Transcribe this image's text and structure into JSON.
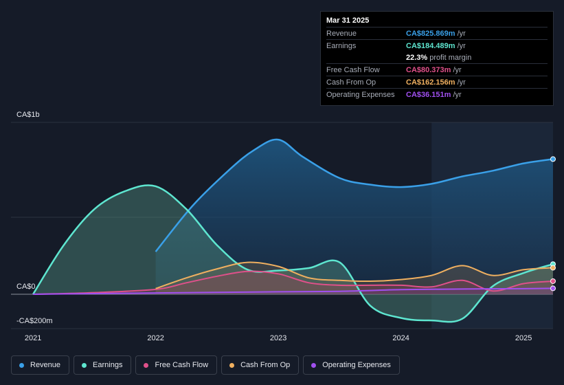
{
  "tooltip": {
    "date": "Mar 31 2025",
    "rows": [
      {
        "label": "Revenue",
        "value": "CA$825.869m",
        "unit": "/yr",
        "color": "#3aa0e8"
      },
      {
        "label": "Earnings",
        "value": "CA$184.489m",
        "unit": "/yr",
        "color": "#5ee6d0"
      },
      {
        "label": "",
        "value": "22.3%",
        "unit": "profit margin",
        "color": "#ffffff"
      },
      {
        "label": "Free Cash Flow",
        "value": "CA$80.373m",
        "unit": "/yr",
        "color": "#e0508a"
      },
      {
        "label": "Cash From Op",
        "value": "CA$162.156m",
        "unit": "/yr",
        "color": "#f0b060"
      },
      {
        "label": "Operating Expenses",
        "value": "CA$36.151m",
        "unit": "/yr",
        "color": "#a050f0"
      }
    ]
  },
  "chart_data": {
    "type": "area",
    "y_unit_label": "CA$",
    "ytick_labels": {
      "top": "CA$1b",
      "zero": "CA$0",
      "bottom": "-CA$200m"
    },
    "ylim": [
      -200,
      1000
    ],
    "xtick_labels": [
      "2021",
      "2022",
      "2023",
      "2024",
      "2025"
    ],
    "xticks": [
      2021,
      2022,
      2023,
      2024,
      2025
    ],
    "xlim": [
      2020.82,
      2025.24
    ],
    "highlight_start": 2024.25,
    "series": [
      {
        "name": "Revenue",
        "color": "#3aa0e8",
        "x": [
          2022.0,
          2022.3,
          2022.6,
          2022.8,
          2023.0,
          2023.2,
          2023.5,
          2023.75,
          2024.0,
          2024.25,
          2024.5,
          2024.75,
          2025.0,
          2025.24
        ],
        "y": [
          260,
          540,
          760,
          880,
          945,
          840,
          710,
          670,
          655,
          675,
          720,
          755,
          800,
          826
        ]
      },
      {
        "name": "Earnings",
        "color": "#5ee6d0",
        "x": [
          2021.0,
          2021.25,
          2021.5,
          2021.75,
          2022.0,
          2022.25,
          2022.5,
          2022.75,
          2023.0,
          2023.25,
          2023.5,
          2023.75,
          2024.0,
          2024.25,
          2024.5,
          2024.75,
          2025.0,
          2025.24
        ],
        "y": [
          0,
          300,
          520,
          630,
          660,
          520,
          300,
          150,
          145,
          160,
          195,
          -70,
          -145,
          -160,
          -150,
          50,
          130,
          184
        ]
      },
      {
        "name": "Free Cash Flow",
        "color": "#e0508a",
        "x": [
          2021.0,
          2021.5,
          2022.0,
          2022.25,
          2022.5,
          2022.75,
          2023.0,
          2023.25,
          2023.5,
          2023.75,
          2024.0,
          2024.25,
          2024.5,
          2024.75,
          2025.0,
          2025.24
        ],
        "y": [
          0,
          10,
          30,
          70,
          110,
          140,
          125,
          70,
          55,
          55,
          55,
          45,
          85,
          20,
          65,
          80
        ]
      },
      {
        "name": "Cash From Op",
        "color": "#f0b060",
        "x": [
          2022.0,
          2022.25,
          2022.5,
          2022.75,
          2023.0,
          2023.25,
          2023.5,
          2023.75,
          2024.0,
          2024.25,
          2024.5,
          2024.75,
          2025.0,
          2025.24
        ],
        "y": [
          35,
          100,
          155,
          195,
          170,
          100,
          85,
          80,
          90,
          115,
          175,
          115,
          150,
          162
        ]
      },
      {
        "name": "Operating Expenses",
        "color": "#a050f0",
        "x": [
          2021.0,
          2022.0,
          2023.0,
          2023.5,
          2024.0,
          2024.5,
          2025.0,
          2025.24
        ],
        "y": [
          0,
          8,
          15,
          18,
          28,
          32,
          34,
          36
        ]
      }
    ]
  },
  "legend": [
    {
      "label": "Revenue",
      "color": "#3aa0e8"
    },
    {
      "label": "Earnings",
      "color": "#5ee6d0"
    },
    {
      "label": "Free Cash Flow",
      "color": "#e0508a"
    },
    {
      "label": "Cash From Op",
      "color": "#f0b060"
    },
    {
      "label": "Operating Expenses",
      "color": "#a050f0"
    }
  ]
}
